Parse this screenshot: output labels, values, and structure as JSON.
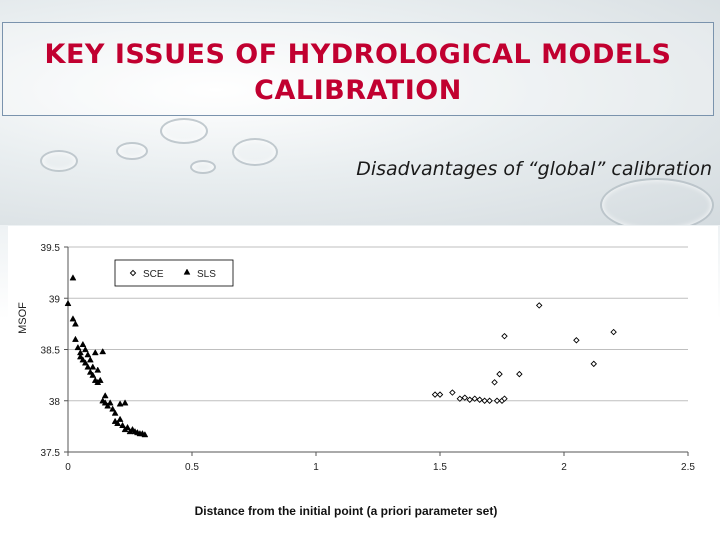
{
  "slide": {
    "title": "KEY ISSUES OF HYDROLOGICAL MODELS CALIBRATION",
    "subtitle": "Disadvantages of “global” calibration"
  },
  "colors": {
    "title": "#c10030",
    "frame": "#7a93ad",
    "markers": "#000000",
    "grid": "#bfbfbf"
  },
  "chart_data": {
    "type": "scatter",
    "title": "",
    "xlabel": "Distance from the initial point (a priori parameter set)",
    "ylabel": "MSOF",
    "xlim": [
      0,
      2.5
    ],
    "ylim": [
      37.5,
      39.5
    ],
    "xticks": [
      "0",
      "0.5",
      "1",
      "1.5",
      "2",
      "2.5"
    ],
    "yticks": [
      "37.5",
      "38",
      "38.5",
      "39",
      "39.5"
    ],
    "grid": "horizontal",
    "legend_position": "top-left",
    "series": [
      {
        "name": "SCE",
        "marker": "diamond-open",
        "points": [
          [
            1.48,
            38.06
          ],
          [
            1.5,
            38.06
          ],
          [
            1.55,
            38.08
          ],
          [
            1.58,
            38.02
          ],
          [
            1.6,
            38.03
          ],
          [
            1.62,
            38.01
          ],
          [
            1.64,
            38.02
          ],
          [
            1.66,
            38.01
          ],
          [
            1.68,
            38.0
          ],
          [
            1.7,
            38.0
          ],
          [
            1.72,
            38.18
          ],
          [
            1.73,
            38.0
          ],
          [
            1.74,
            38.26
          ],
          [
            1.75,
            38.0
          ],
          [
            1.76,
            38.02
          ],
          [
            1.76,
            38.63
          ],
          [
            1.82,
            38.26
          ],
          [
            1.9,
            38.93
          ],
          [
            2.05,
            38.59
          ],
          [
            2.12,
            38.36
          ],
          [
            2.2,
            38.67
          ]
        ]
      },
      {
        "name": "SLS",
        "marker": "triangle-filled",
        "points": [
          [
            0.0,
            38.95
          ],
          [
            0.02,
            39.2
          ],
          [
            0.02,
            38.8
          ],
          [
            0.03,
            38.75
          ],
          [
            0.03,
            38.6
          ],
          [
            0.04,
            38.52
          ],
          [
            0.05,
            38.47
          ],
          [
            0.05,
            38.43
          ],
          [
            0.06,
            38.55
          ],
          [
            0.06,
            38.4
          ],
          [
            0.07,
            38.37
          ],
          [
            0.07,
            38.5
          ],
          [
            0.08,
            38.33
          ],
          [
            0.08,
            38.45
          ],
          [
            0.09,
            38.28
          ],
          [
            0.09,
            38.4
          ],
          [
            0.1,
            38.25
          ],
          [
            0.1,
            38.33
          ],
          [
            0.11,
            38.2
          ],
          [
            0.11,
            38.47
          ],
          [
            0.12,
            38.18
          ],
          [
            0.12,
            38.3
          ],
          [
            0.13,
            38.2
          ],
          [
            0.14,
            38.48
          ],
          [
            0.14,
            38.0
          ],
          [
            0.15,
            37.98
          ],
          [
            0.15,
            38.05
          ],
          [
            0.16,
            37.95
          ],
          [
            0.17,
            37.98
          ],
          [
            0.18,
            37.92
          ],
          [
            0.19,
            37.8
          ],
          [
            0.19,
            37.88
          ],
          [
            0.2,
            37.78
          ],
          [
            0.21,
            37.82
          ],
          [
            0.21,
            37.97
          ],
          [
            0.22,
            37.76
          ],
          [
            0.23,
            37.98
          ],
          [
            0.23,
            37.72
          ],
          [
            0.24,
            37.74
          ],
          [
            0.25,
            37.7
          ],
          [
            0.26,
            37.72
          ],
          [
            0.27,
            37.7
          ],
          [
            0.28,
            37.69
          ],
          [
            0.29,
            37.68
          ],
          [
            0.3,
            37.68
          ],
          [
            0.31,
            37.67
          ]
        ]
      }
    ]
  }
}
